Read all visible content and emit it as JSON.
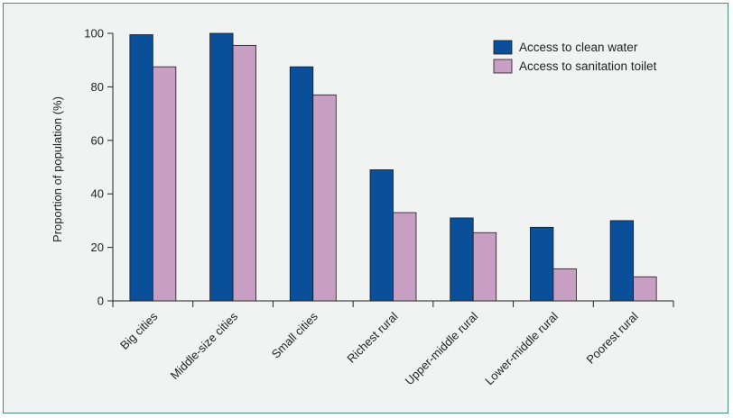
{
  "chart_data": {
    "type": "bar",
    "ylabel": "Proportion of population (%)",
    "ylim": [
      0,
      100
    ],
    "yticks": [
      0,
      20,
      40,
      60,
      80,
      100
    ],
    "categories": [
      "Big cities",
      "Middle-size cities",
      "Small cities",
      "Richest rural",
      "Upper-middle rural",
      "Lower-middle rural",
      "Poorest rural"
    ],
    "series": [
      {
        "name": "Access to clean water",
        "color": "#0a4f99",
        "values": [
          99.5,
          100,
          87.5,
          49,
          31,
          27.5,
          30
        ]
      },
      {
        "name": "Access to sanitation toilet",
        "color": "#c69fc3",
        "values": [
          87.5,
          95.5,
          77,
          33,
          25.5,
          12,
          9
        ]
      }
    ],
    "legend_position": "top-right",
    "grid": false
  }
}
